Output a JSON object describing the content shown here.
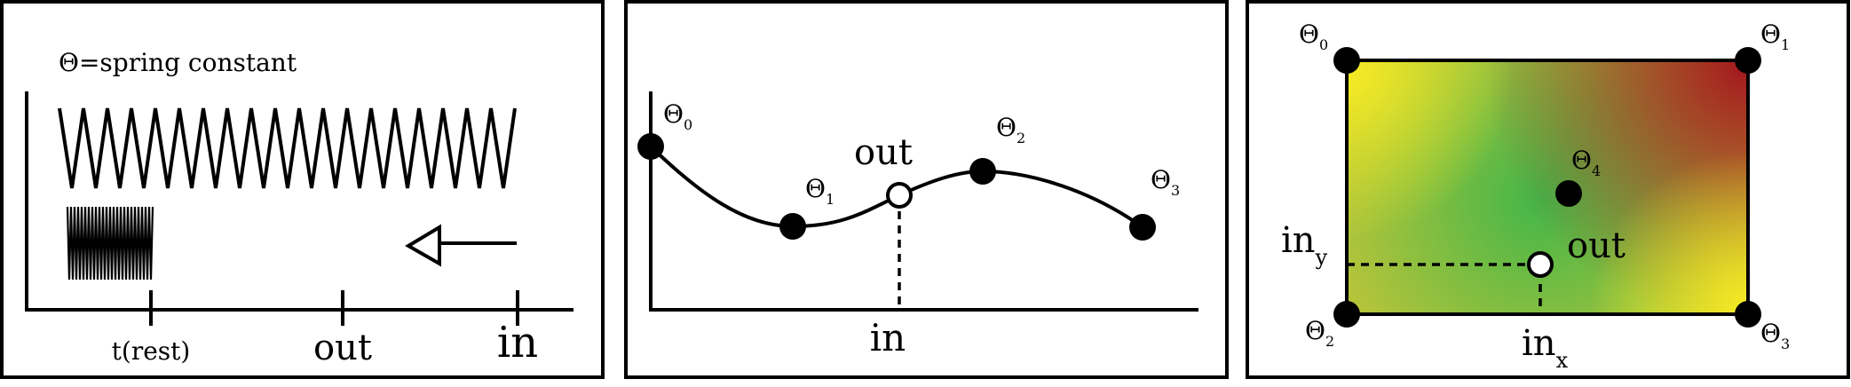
{
  "panel1": {
    "caption": "Θ=spring constant",
    "ticks": [
      "t(rest)",
      "out",
      "in"
    ]
  },
  "panel2": {
    "points": [
      {
        "symbol": "Θ",
        "sub": "0"
      },
      {
        "symbol": "Θ",
        "sub": "1"
      },
      {
        "symbol": "Θ",
        "sub": "2"
      },
      {
        "symbol": "Θ",
        "sub": "3"
      }
    ],
    "out_label": "out",
    "x_label": "in"
  },
  "panel3": {
    "corners": [
      {
        "symbol": "Θ",
        "sub": "0"
      },
      {
        "symbol": "Θ",
        "sub": "1"
      },
      {
        "symbol": "Θ",
        "sub": "2"
      },
      {
        "symbol": "Θ",
        "sub": "3"
      }
    ],
    "center": {
      "symbol": "Θ",
      "sub": "4"
    },
    "out_label": "out",
    "in_x": {
      "main": "in",
      "sub": "x"
    },
    "in_y": {
      "main": "in",
      "sub": "y"
    },
    "colors": {
      "yellow": "#f7ec23",
      "green": "#43b649",
      "red": "#a3151e"
    }
  }
}
